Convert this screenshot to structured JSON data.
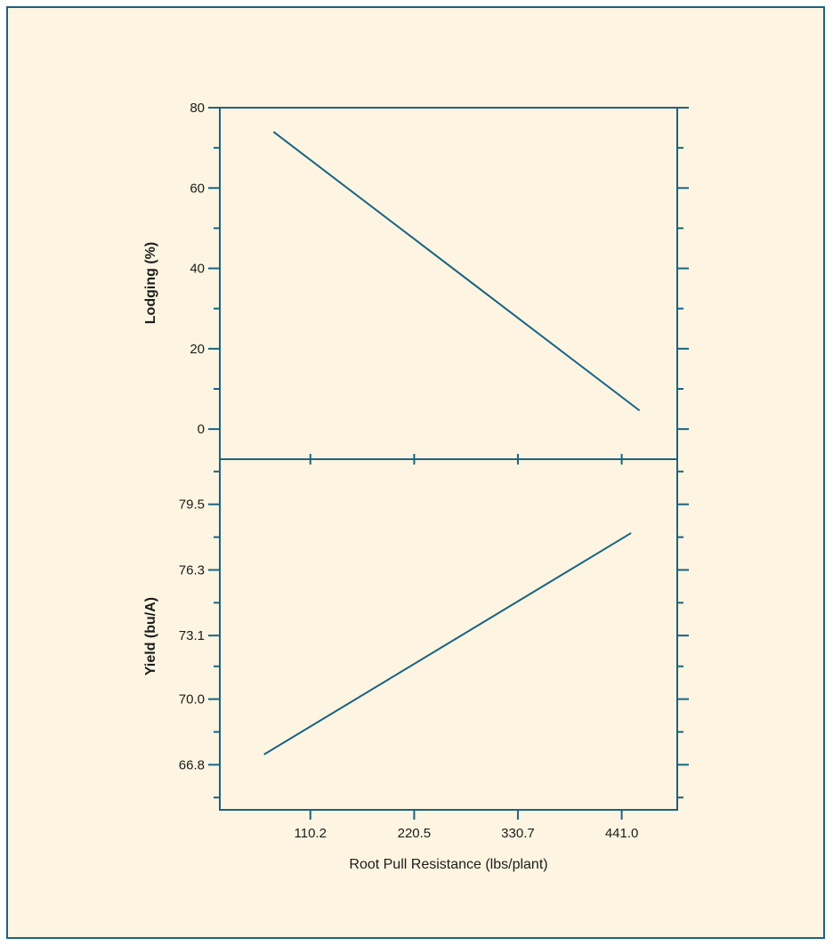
{
  "colors": {
    "frame_border": "#1a6384",
    "background": "#fdf5e1",
    "axis": "#1a6384",
    "series_line": "#1a6384",
    "text": "#1c1c1c"
  },
  "chart_data": [
    {
      "type": "line",
      "panel": "top",
      "title": "",
      "xlabel": "",
      "ylabel": "Lodging (%)",
      "xlim": [
        14,
        500
      ],
      "ylim": [
        -7.5,
        80
      ],
      "xticks": [
        "110.2",
        "220.5",
        "330.7",
        "441.0"
      ],
      "yticks": [
        "0",
        "20",
        "40",
        "60",
        "80"
      ],
      "series": [
        {
          "x": [
            71,
            460
          ],
          "y": [
            74,
            4.6
          ]
        }
      ],
      "grid": false,
      "legend": "none"
    },
    {
      "type": "line",
      "panel": "bottom",
      "title": "",
      "xlabel": "Root Pull Resistance (lbs/plant)",
      "ylabel": "Yield (bu/A)",
      "xlim": [
        14,
        500
      ],
      "ylim": [
        64.6,
        81.7
      ],
      "xticks": [
        "110.2",
        "220.5",
        "330.7",
        "441.0"
      ],
      "yticks": [
        "66.8",
        "70.0",
        "73.1",
        "76.3",
        "79.5"
      ],
      "series": [
        {
          "x": [
            61,
            451
          ],
          "y": [
            67.3,
            78.1
          ]
        }
      ],
      "grid": false,
      "legend": "none"
    }
  ]
}
